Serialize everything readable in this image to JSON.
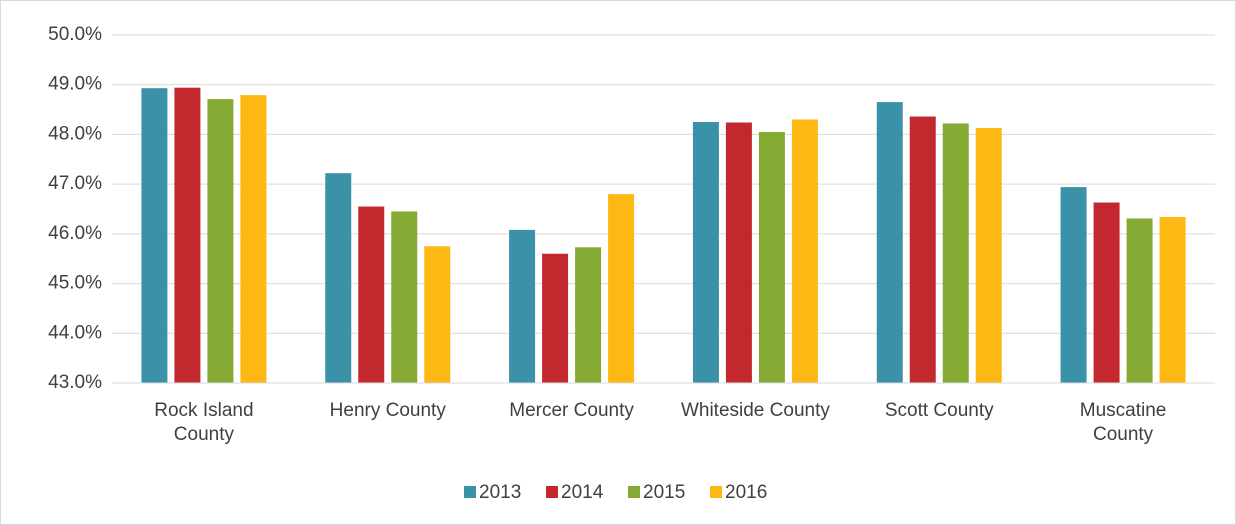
{
  "chart_data": {
    "type": "bar",
    "categories": [
      "Rock Island County",
      "Henry County",
      "Mercer County",
      "Whiteside County",
      "Scott County",
      "Muscatine County"
    ],
    "series": [
      {
        "name": "2013",
        "color": "#3a91a8",
        "values": [
          48.93,
          47.22,
          46.08,
          48.25,
          48.65,
          46.94
        ]
      },
      {
        "name": "2014",
        "color": "#c3282e",
        "values": [
          48.94,
          46.55,
          45.6,
          48.24,
          48.36,
          46.63
        ]
      },
      {
        "name": "2015",
        "color": "#84aa33",
        "values": [
          48.71,
          46.45,
          45.73,
          48.05,
          48.22,
          46.31
        ]
      },
      {
        "name": "2016",
        "color": "#fdb813",
        "values": [
          48.79,
          45.75,
          46.8,
          48.3,
          48.13,
          46.34
        ]
      }
    ],
    "ylim": [
      43,
      50
    ],
    "yticks": [
      {
        "value": 43,
        "label": "43.0%"
      },
      {
        "value": 44,
        "label": "44.0%"
      },
      {
        "value": 45,
        "label": "45.0%"
      },
      {
        "value": 46,
        "label": "46.0%"
      },
      {
        "value": 47,
        "label": "47.0%"
      },
      {
        "value": 48,
        "label": "48.0%"
      },
      {
        "value": 49,
        "label": "49.0%"
      },
      {
        "value": 50,
        "label": "50.0%"
      }
    ],
    "grid": true,
    "legend": "bottom"
  }
}
